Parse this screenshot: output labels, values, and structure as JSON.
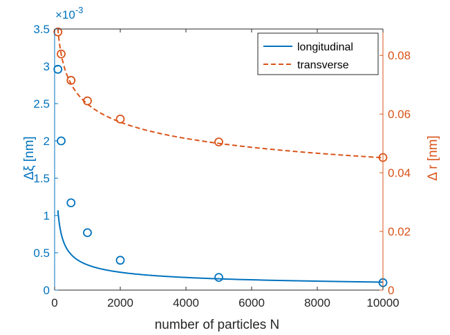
{
  "chart_data": {
    "type": "line",
    "xlabel": "number of particles N",
    "ylabel_left": "Δξ [nm]",
    "ylabel_right": "Δ r [nm]",
    "left_exponent": "×10",
    "left_exponent_power": "-3",
    "xlim": [
      0,
      10000
    ],
    "ylim_left": [
      0,
      3.5
    ],
    "ylim_right": [
      0,
      0.089
    ],
    "xticks": [
      0,
      2000,
      4000,
      6000,
      8000,
      10000
    ],
    "xtick_labels": [
      "0",
      "2000",
      "4000",
      "6000",
      "8000",
      "10000"
    ],
    "yticks_left": [
      0,
      0.5,
      1,
      1.5,
      2,
      2.5,
      3,
      3.5
    ],
    "ytick_labels_left": [
      "0",
      "0.5",
      "1",
      "1.5",
      "2",
      "2.5",
      "3",
      "3.5"
    ],
    "yticks_right": [
      0,
      0.02,
      0.04,
      0.06,
      0.08
    ],
    "ytick_labels_right": [
      "0",
      "0.02",
      "0.04",
      "0.06",
      "0.08"
    ],
    "legend_position": "top-right",
    "grid": false,
    "series": [
      {
        "name": "longitudinal",
        "axis": "left",
        "color": "#0072BD",
        "line_style": "solid",
        "points": {
          "x": [
            100,
            200,
            500,
            1000,
            2000,
            5000,
            10000
          ],
          "y": [
            2.96,
            2.0,
            1.17,
            0.77,
            0.4,
            0.17,
            0.1
          ]
        },
        "fit": {
          "form": "a/sqrt(N)",
          "a": 0.0107
        }
      },
      {
        "name": "transverse",
        "axis": "right",
        "color": "#D95319",
        "line_style": "dashed",
        "points": {
          "x": [
            100,
            200,
            500,
            1000,
            2000,
            5000,
            10000
          ],
          "y": [
            0.088,
            0.0805,
            0.0715,
            0.0645,
            0.0583,
            0.0505,
            0.0452
          ]
        },
        "fit": {
          "form": "a*N^b",
          "a": 0.1761,
          "b": -0.1478
        }
      }
    ]
  }
}
